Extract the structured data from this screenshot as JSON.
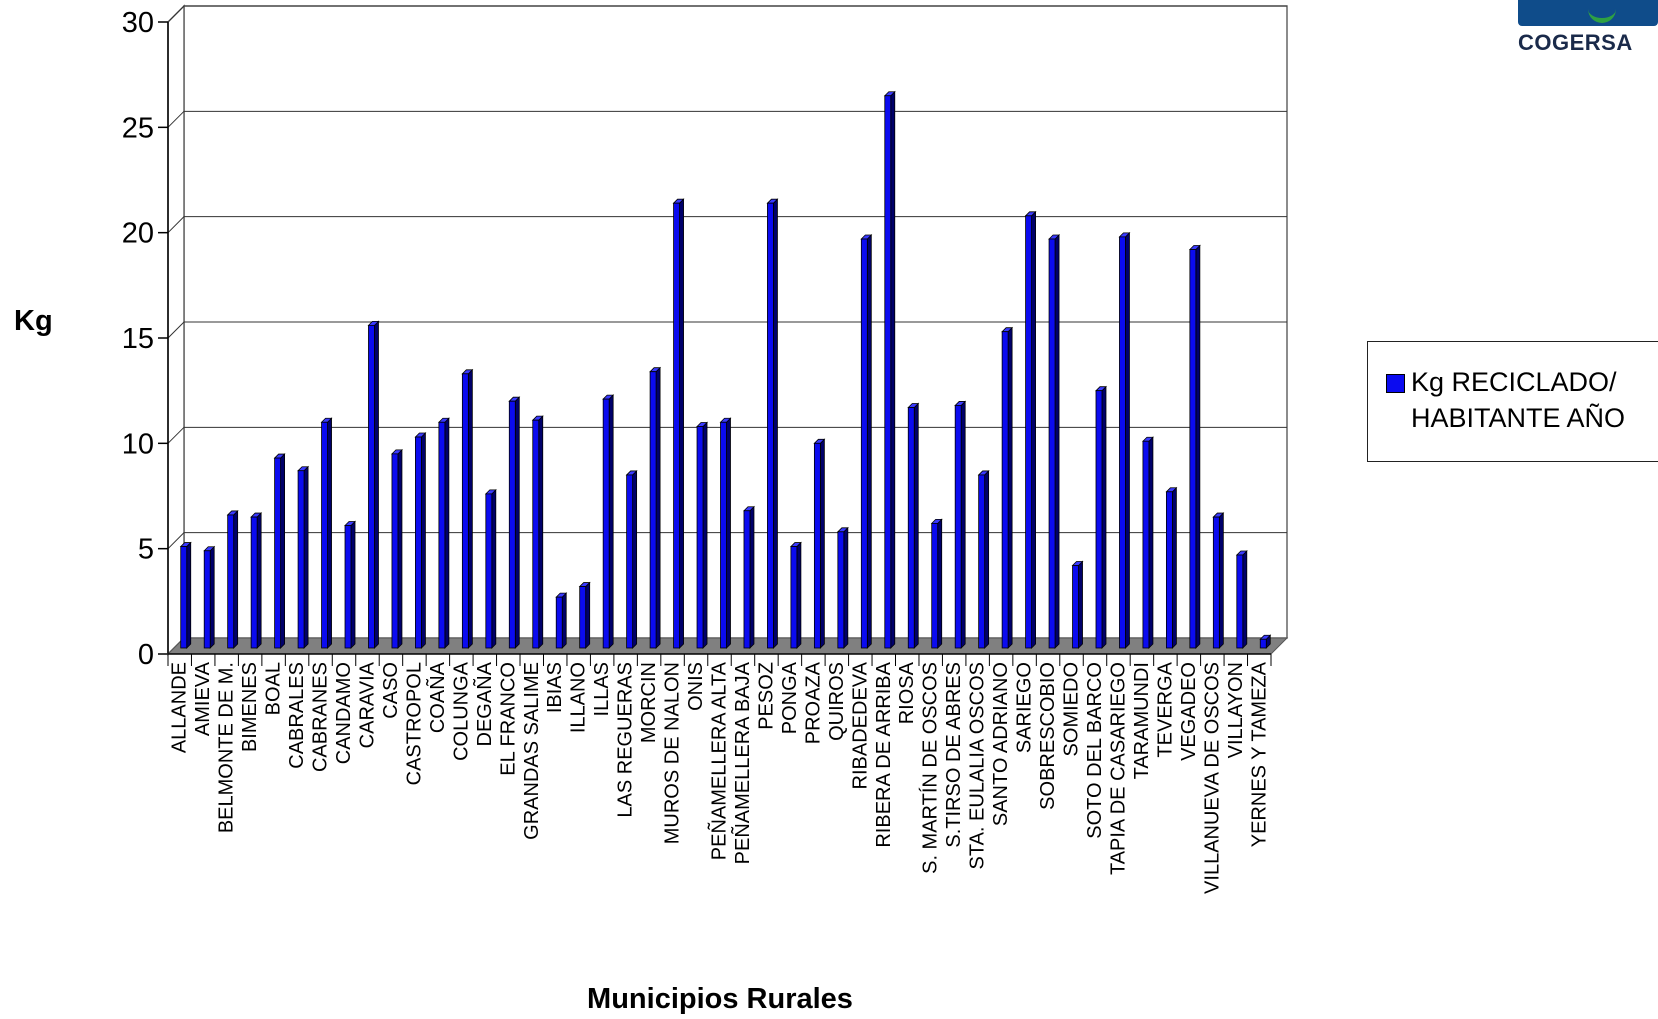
{
  "chart_data": {
    "type": "bar",
    "title": "",
    "xlabel": "Municipios Rurales",
    "ylabel": "Kg",
    "ylim": [
      0,
      30
    ],
    "yticks": [
      "0",
      "5",
      "10",
      "15",
      "20",
      "25",
      "30"
    ],
    "grid": true,
    "legend_position": "right",
    "categories": [
      "ALLANDE",
      "AMIEVA",
      "BELMONTE DE M.",
      "BIMENES",
      "BOAL",
      "CABRALES",
      "CABRANES",
      "CANDAMO",
      "CARAVIA",
      "CASO",
      "CASTROPOL",
      "COAÑA",
      "COLUNGA",
      "DEGAÑA",
      "EL FRANCO",
      "GRANDAS SALIME",
      "IBIAS",
      "ILLANO",
      "ILLAS",
      "LAS REGUERAS",
      "MORCIN",
      "MUROS DE NALON",
      "ONIS",
      "PEÑAMELLERA ALTA",
      "PEÑAMELLERA BAJA",
      "PESOZ",
      "PONGA",
      "PROAZA",
      "QUIROS",
      "RIBADEDEVA",
      "RIBERA DE ARRIBA",
      "RIOSA",
      "S. MARTÍN DE OSCOS",
      "S.TIRSO DE ABRES",
      "STA. EULALIA OSCOS",
      "SANTO ADRIANO",
      "SARIEGO",
      "SOBRESCOBIO",
      "SOMIEDO",
      "SOTO DEL BARCO",
      "TAPIA DE CASARIEGO",
      "TARAMUNDI",
      "TEVERGA",
      "VEGADEO",
      "VILLANUEVA DE OSCOS",
      "VILLAYON",
      "YERNES Y TAMEZA"
    ],
    "series": [
      {
        "name": "Kg RECICLADO/ HABITANTE AÑO",
        "color": "#0b0bf0",
        "values": [
          5.1,
          4.9,
          6.6,
          6.5,
          9.3,
          8.7,
          11.0,
          6.1,
          15.6,
          9.5,
          10.3,
          11.0,
          13.3,
          7.6,
          12.0,
          11.1,
          2.7,
          3.2,
          12.1,
          8.5,
          13.4,
          21.4,
          10.8,
          11.0,
          6.8,
          21.4,
          5.1,
          10.0,
          5.8,
          19.7,
          26.5,
          11.7,
          6.2,
          11.8,
          8.5,
          15.3,
          20.8,
          19.7,
          4.2,
          12.5,
          19.8,
          10.1,
          7.7,
          19.2,
          6.5,
          4.7,
          0.7
        ]
      }
    ]
  },
  "legend": {
    "label": "Kg RECICLADO/\nHABITANTE AÑO"
  },
  "logo": {
    "text": "COGERSA"
  }
}
